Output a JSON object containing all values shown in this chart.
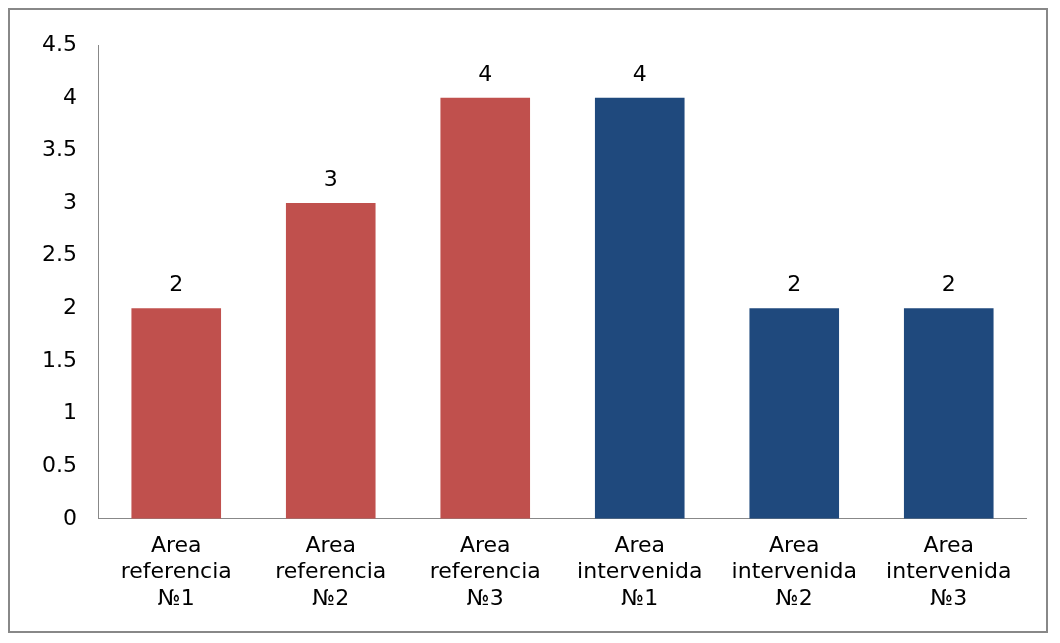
{
  "chart_data": {
    "type": "bar",
    "categories": [
      "Area referencia №1",
      "Area referencia №2",
      "Area referencia №3",
      "Area intervenida №1",
      "Area intervenida №2",
      "Area intervenida №3"
    ],
    "values": [
      2,
      3,
      4,
      4,
      2,
      2
    ],
    "colors": [
      "#c0504d",
      "#c0504d",
      "#c0504d",
      "#1f497d",
      "#1f497d",
      "#1f497d"
    ],
    "ylim": [
      0,
      4.5
    ],
    "yticks": [
      0,
      0.5,
      1,
      1.5,
      2,
      2.5,
      3,
      3.5,
      4,
      4.5
    ],
    "grid": false,
    "legend": false,
    "data_labels": true
  }
}
